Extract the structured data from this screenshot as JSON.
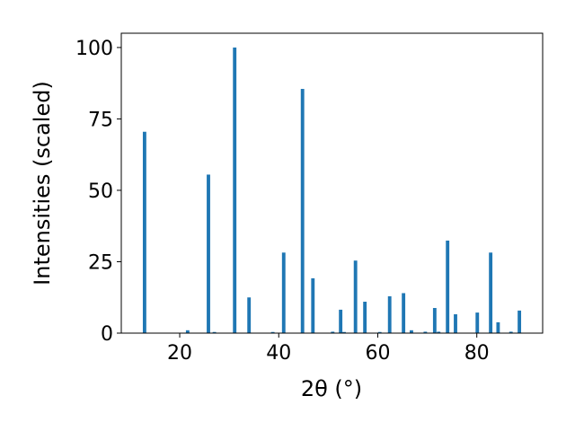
{
  "chart_data": {
    "type": "bar",
    "title": "",
    "xlabel": "2θ (°)",
    "ylabel": "Intensities (scaled)",
    "xlim": [
      8.2,
      93.3
    ],
    "ylim": [
      0,
      105
    ],
    "grid": false,
    "legend": "none",
    "bar_color": "#1f77b4",
    "bar_width": 0.7,
    "xticks": [
      20,
      40,
      60,
      80
    ],
    "yticks": [
      0,
      25,
      50,
      75,
      100
    ],
    "x": [
      12.9,
      21.6,
      25.8,
      27.0,
      31.1,
      34.0,
      38.8,
      41.0,
      44.8,
      46.9,
      50.9,
      52.5,
      53.2,
      55.5,
      57.4,
      60.4,
      62.4,
      65.2,
      66.8,
      69.6,
      71.5,
      72.3,
      74.1,
      75.7,
      80.1,
      82.8,
      84.3,
      86.9,
      88.6
    ],
    "values": [
      70.5,
      1.0,
      55.5,
      0.4,
      100,
      12.5,
      0.4,
      28.2,
      85.5,
      19.2,
      0.5,
      8.2,
      0.4,
      25.4,
      11.0,
      0.4,
      12.9,
      14.0,
      1.0,
      0.5,
      8.8,
      0.5,
      32.4,
      6.6,
      7.2,
      28.2,
      3.8,
      0.5,
      7.9
    ]
  }
}
